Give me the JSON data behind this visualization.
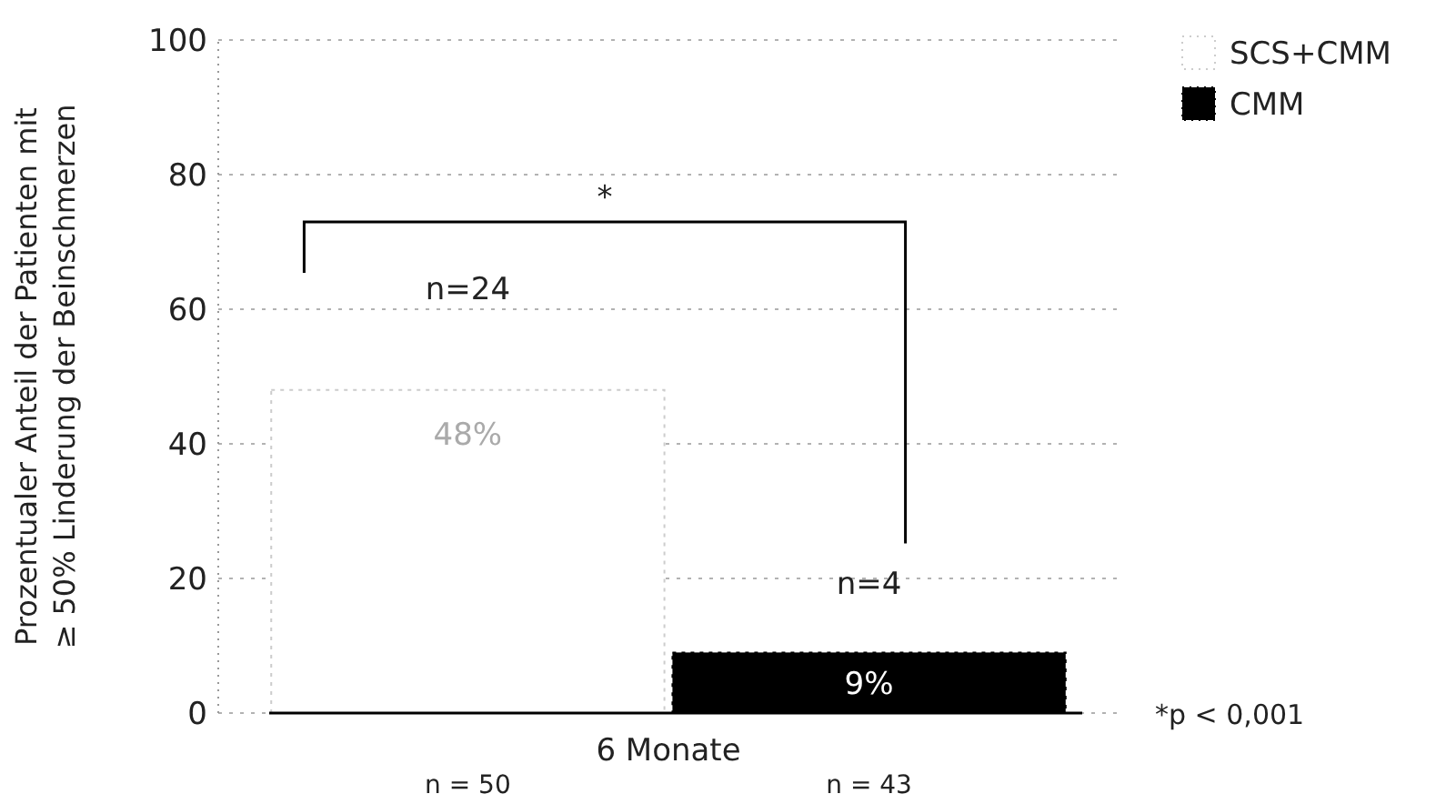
{
  "chart_data": {
    "type": "bar",
    "ylabel": "Prozentualer Anteil der Patienten mit\n≥ 50% Linderung der Beinschmerzen",
    "categories": [
      "6 Monate"
    ],
    "series": [
      {
        "name": "SCS+CMM",
        "color": "#ffffff",
        "values": [
          48
        ],
        "value_labels": [
          "48%"
        ]
      },
      {
        "name": "CMM",
        "color": "#000000",
        "values": [
          9
        ],
        "value_labels": [
          "9%"
        ]
      }
    ],
    "ylim": [
      0,
      100
    ],
    "yticks": [
      0,
      20,
      40,
      60,
      80,
      100
    ],
    "grid": "y",
    "legend": "top right",
    "annotations": [
      "n=24",
      "n=4",
      "n = 50",
      "n = 43",
      "*",
      "*p < 0,001"
    ]
  }
}
